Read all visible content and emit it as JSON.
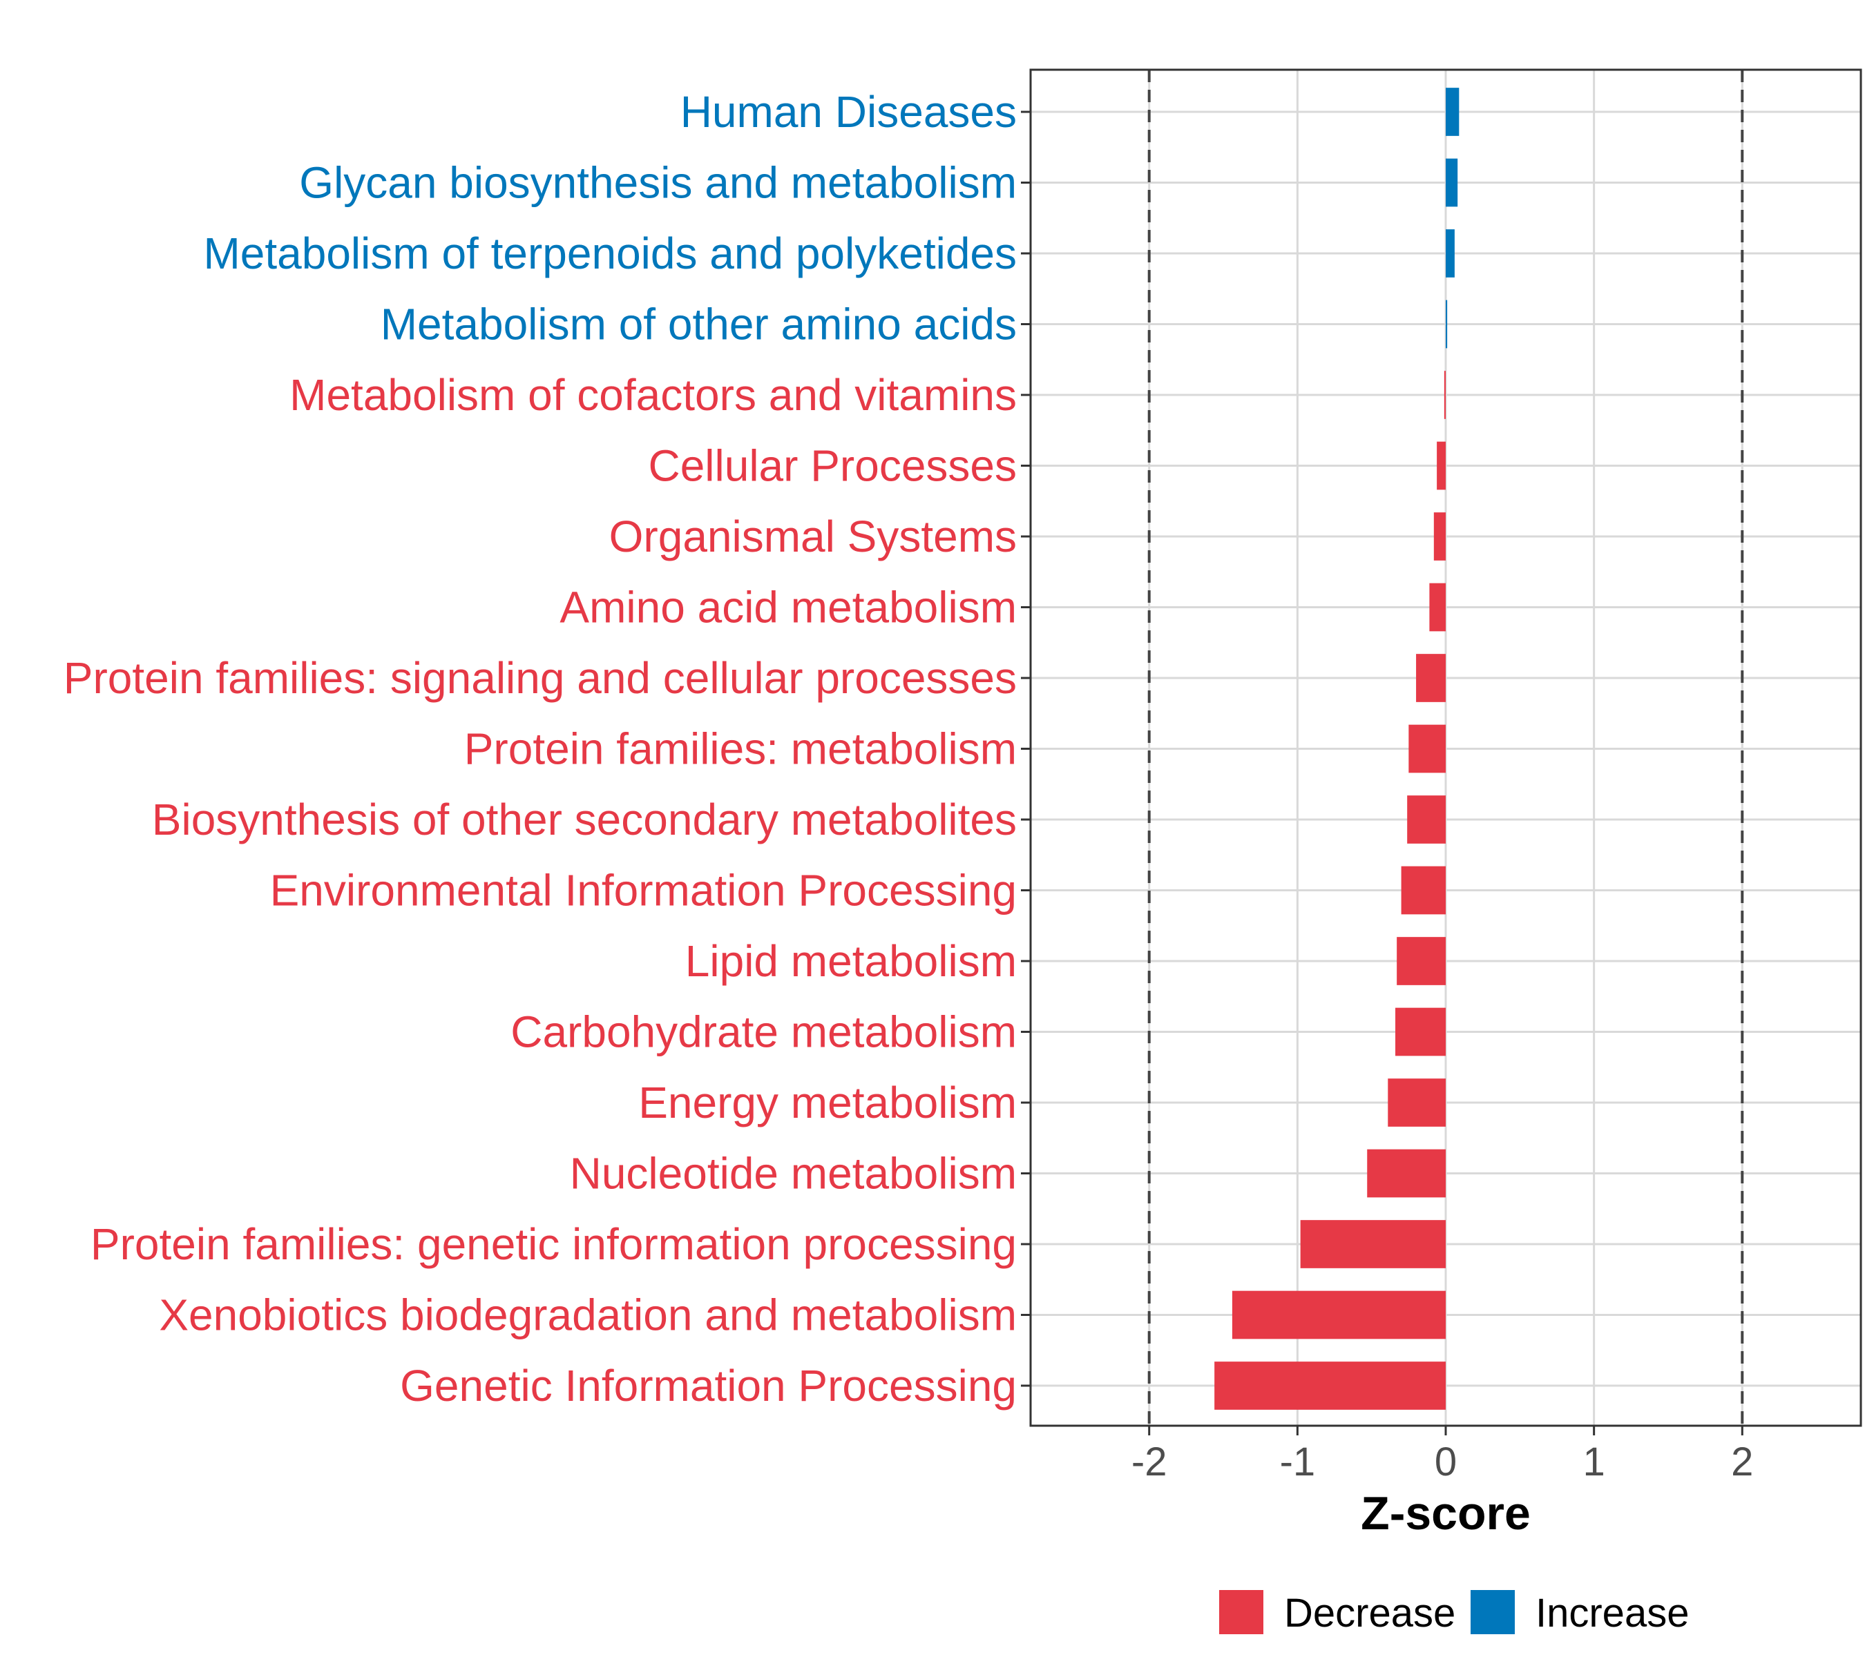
{
  "chart_data": {
    "type": "bar",
    "orientation": "horizontal",
    "title": "",
    "xlabel": "Z-score",
    "ylabel": "",
    "xlim": [
      -2.8,
      2.8
    ],
    "xticks": [
      -2,
      -1,
      0,
      1,
      2
    ],
    "xtick_labels": [
      "-2",
      "-1",
      "0",
      "1",
      "2"
    ],
    "reference_lines": [
      -2,
      2
    ],
    "grid": true,
    "legend_position": "bottom",
    "colors": {
      "Decrease": "#e63946",
      "Increase": "#0077bb"
    },
    "categories": [
      "Human Diseases",
      "Glycan biosynthesis and metabolism",
      "Metabolism of terpenoids and polyketides",
      "Metabolism of other amino acids",
      "Metabolism of cofactors and vitamins",
      "Cellular Processes",
      "Organismal Systems",
      "Amino acid metabolism",
      "Protein families: signaling and cellular processes",
      "Protein families: metabolism",
      "Biosynthesis of other secondary metabolites",
      "Environmental Information Processing",
      "Lipid metabolism",
      "Carbohydrate metabolism",
      "Energy metabolism",
      "Nucleotide metabolism",
      "Protein families: genetic information processing",
      "Xenobiotics biodegradation and metabolism",
      "Genetic Information Processing"
    ],
    "values": [
      0.09,
      0.08,
      0.06,
      0.01,
      -0.01,
      -0.06,
      -0.08,
      -0.11,
      -0.2,
      -0.25,
      -0.26,
      -0.3,
      -0.33,
      -0.34,
      -0.39,
      -0.53,
      -0.98,
      -1.44,
      -1.56
    ],
    "groups": [
      "Increase",
      "Increase",
      "Increase",
      "Increase",
      "Decrease",
      "Decrease",
      "Decrease",
      "Decrease",
      "Decrease",
      "Decrease",
      "Decrease",
      "Decrease",
      "Decrease",
      "Decrease",
      "Decrease",
      "Decrease",
      "Decrease",
      "Decrease",
      "Decrease"
    ],
    "legend": [
      {
        "name": "Decrease"
      },
      {
        "name": "Increase"
      }
    ]
  }
}
